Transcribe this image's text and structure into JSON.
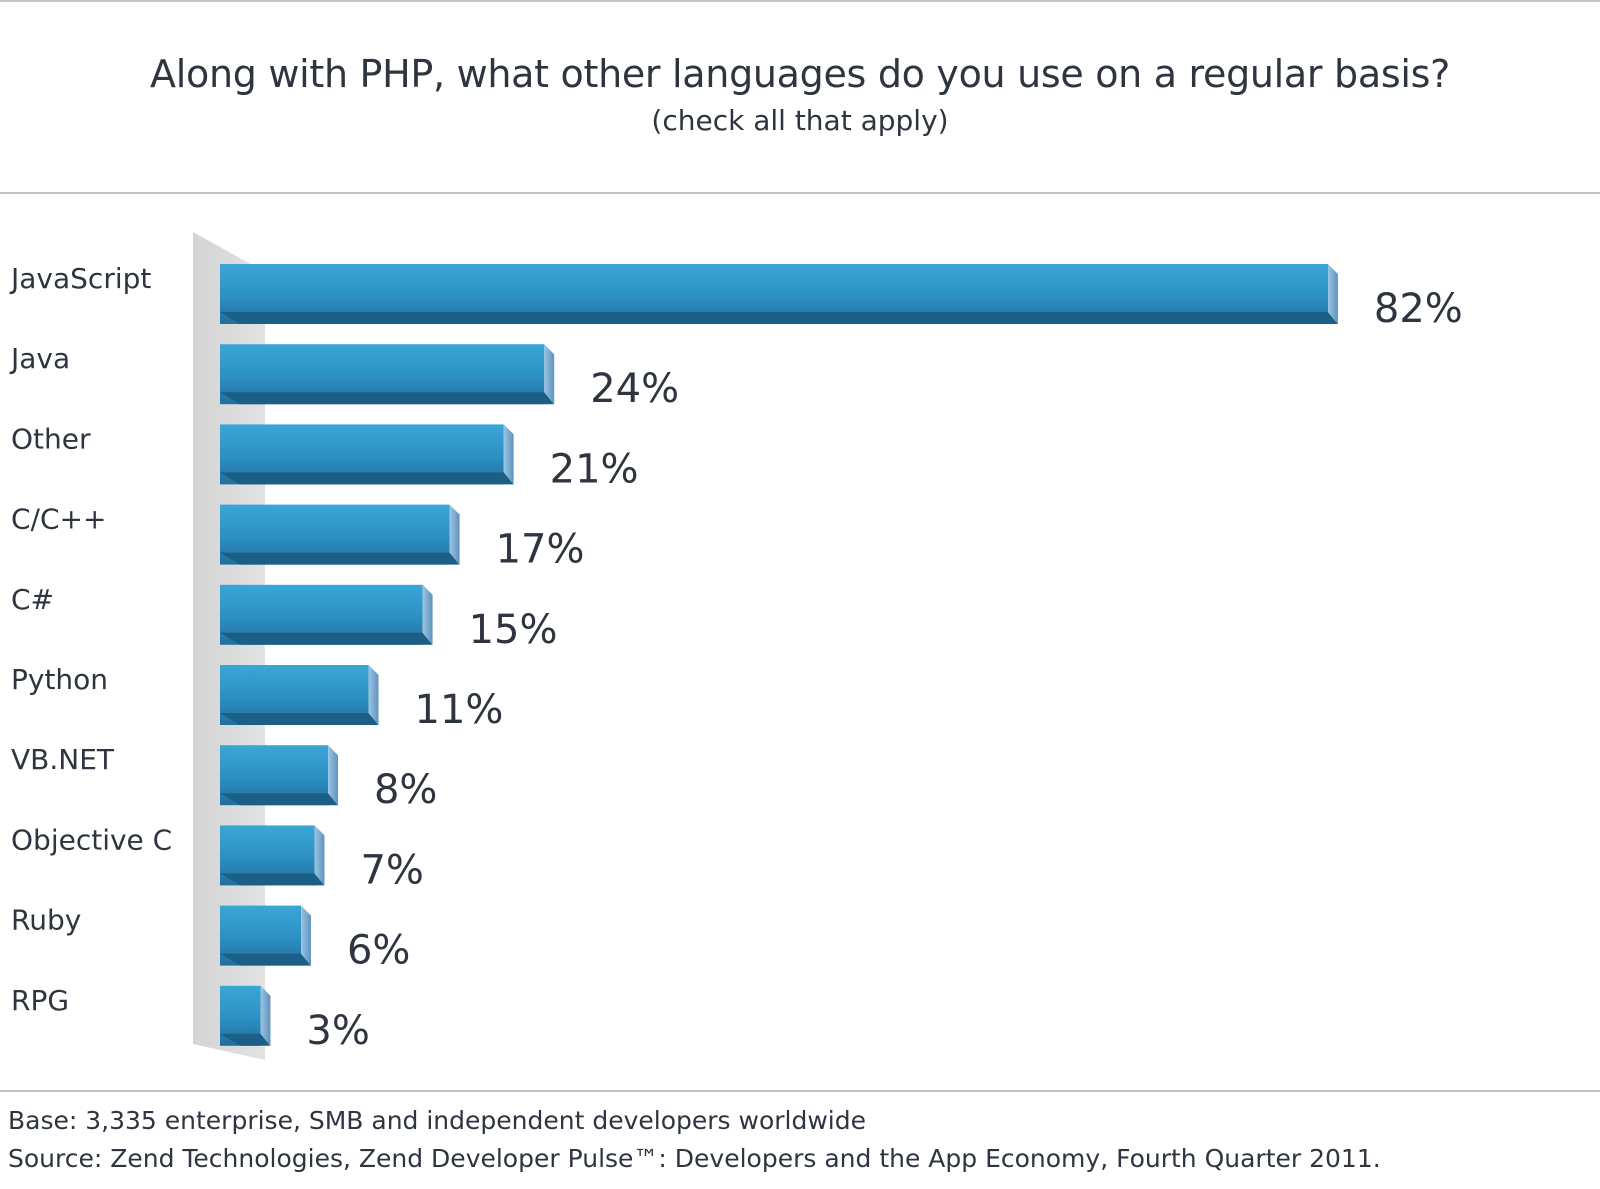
{
  "header": {
    "title": "Along with PHP, what other languages do you use on a regular basis?",
    "subtitle": "(check all that apply)"
  },
  "chart_data": {
    "type": "bar",
    "orientation": "horizontal",
    "title": "Along with PHP, what other languages do you use on a regular basis?",
    "subtitle": "(check all that apply)",
    "categories": [
      "JavaScript",
      "Java",
      "Other",
      "C/C++",
      "C#",
      "Python",
      "VB.NET",
      "Objective C",
      "Ruby",
      "RPG"
    ],
    "values": [
      82,
      24,
      21,
      17,
      15,
      11,
      8,
      7,
      6,
      3
    ],
    "value_labels": [
      "82%",
      "24%",
      "21%",
      "17%",
      "15%",
      "11%",
      "8%",
      "7%",
      "6%",
      "3%"
    ],
    "xlabel": "",
    "ylabel": "",
    "xlim": [
      0,
      100
    ],
    "grid": false,
    "legend": "none",
    "bar_color": "#2f97c8"
  },
  "footer": {
    "base": "Base: 3,335 enterprise, SMB and independent developers worldwide",
    "source": "Source: Zend Technologies, Zend Developer Pulse™: Developers and the App Economy, Fourth Quarter 2011."
  }
}
